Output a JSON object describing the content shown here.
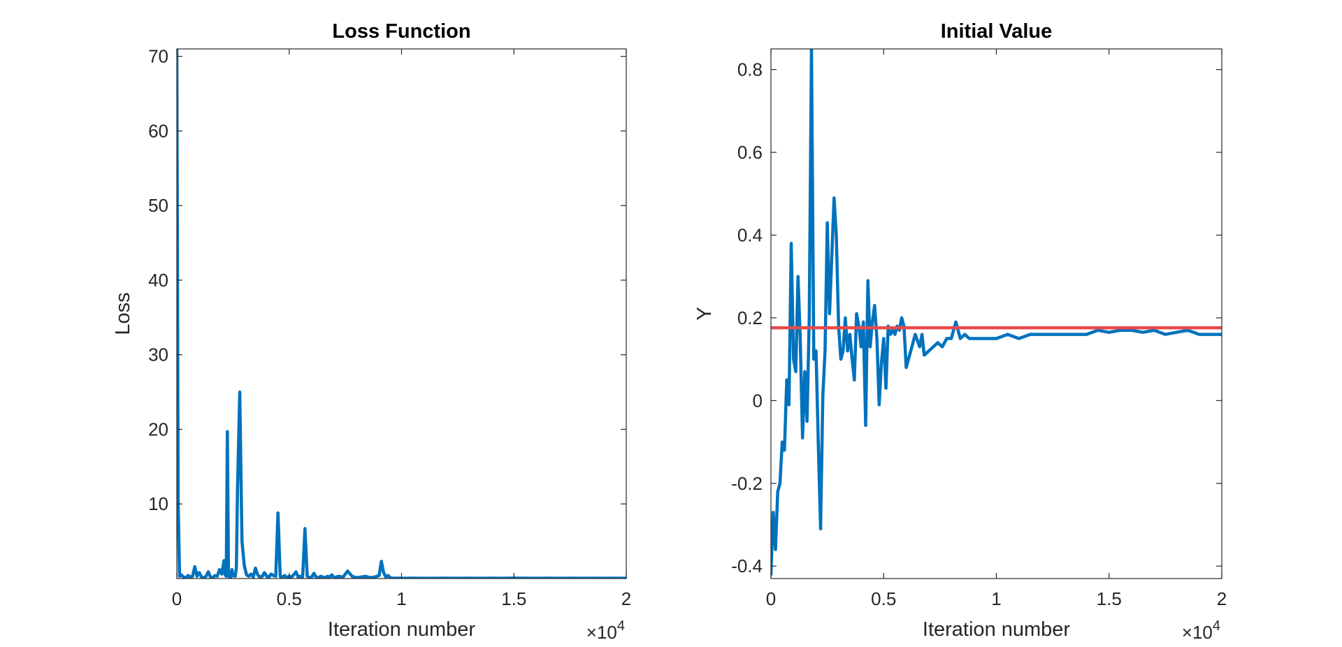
{
  "chart_data": [
    {
      "type": "line",
      "title": "Loss Function",
      "xlabel": "Iteration number",
      "ylabel": "Loss",
      "xlim": [
        0,
        20000
      ],
      "ylim": [
        0,
        71
      ],
      "x_exponent_label": "×10",
      "x_exponent": "4",
      "xticks": [
        0,
        5000,
        10000,
        15000,
        20000
      ],
      "xtick_labels": [
        "0",
        "0.5",
        "1",
        "1.5",
        "2"
      ],
      "yticks": [
        10,
        20,
        30,
        40,
        50,
        60,
        70
      ],
      "ytick_labels": [
        "10",
        "20",
        "30",
        "40",
        "50",
        "60",
        "70"
      ],
      "grid": false,
      "series": [
        {
          "color": "#0072bd",
          "x": [
            0,
            60,
            120,
            200,
            300,
            400,
            500,
            600,
            700,
            800,
            900,
            1000,
            1100,
            1200,
            1300,
            1400,
            1500,
            1600,
            1700,
            1800,
            1900,
            2000,
            2100,
            2150,
            2200,
            2250,
            2300,
            2350,
            2400,
            2450,
            2500,
            2600,
            2650,
            2700,
            2800,
            2900,
            3000,
            3100,
            3200,
            3300,
            3400,
            3500,
            3600,
            3700,
            3800,
            3900,
            4000,
            4100,
            4200,
            4300,
            4400,
            4500,
            4600,
            4700,
            4800,
            4900,
            5000,
            5100,
            5200,
            5300,
            5400,
            5500,
            5600,
            5700,
            5800,
            5900,
            6000,
            6100,
            6200,
            6300,
            6400,
            6500,
            6600,
            6700,
            6800,
            6900,
            7000,
            7200,
            7400,
            7600,
            7800,
            8000,
            8200,
            8400,
            8600,
            8800,
            9000,
            9100,
            9200,
            9300,
            9400,
            9500,
            9600,
            9700,
            9800,
            10000,
            10500,
            11000,
            11500,
            12000,
            12500,
            13000,
            13500,
            14000,
            14500,
            15000,
            15500,
            16000,
            16500,
            17000,
            17500,
            18000,
            18500,
            19000,
            19500,
            20000
          ],
          "y": [
            71,
            10,
            0.3,
            0.5,
            0.2,
            0.1,
            0.4,
            0.2,
            0.3,
            1.6,
            0.3,
            0.8,
            0.2,
            0.1,
            0.3,
            0.9,
            0.2,
            0.1,
            0.4,
            0.3,
            1.2,
            0.6,
            2.4,
            0.5,
            0.3,
            19.7,
            0.4,
            0.2,
            0.1,
            1.2,
            0.4,
            0.3,
            1.5,
            12,
            25,
            5,
            1.8,
            0.5,
            0.3,
            0.6,
            0.2,
            1.4,
            0.5,
            0.2,
            0.3,
            0.8,
            0.3,
            0.2,
            0.6,
            0.4,
            0.3,
            8.8,
            0.3,
            0.2,
            0.4,
            0.1,
            0.3,
            0.2,
            0.5,
            0.9,
            0.2,
            0.3,
            0.2,
            6.7,
            0.3,
            0.1,
            0.2,
            0.7,
            0.2,
            0.1,
            0.3,
            0.2,
            0.1,
            0.3,
            0.2,
            0.5,
            0.1,
            0.3,
            0.2,
            1.0,
            0.3,
            0.1,
            0.2,
            0.3,
            0.1,
            0.2,
            0.4,
            2.3,
            0.8,
            0.2,
            0.4,
            0.1,
            0.05,
            0.05,
            0.05,
            0.04,
            0.05,
            0.04,
            0.04,
            0.05,
            0.04,
            0.05,
            0.04,
            0.05,
            0.04,
            0.06,
            0.05,
            0.04,
            0.05,
            0.04,
            0.05,
            0.04,
            0.05,
            0.04,
            0.05,
            0.04
          ]
        }
      ]
    },
    {
      "type": "line",
      "title": "Initial Value",
      "xlabel": "Iteration number",
      "ylabel": "Y",
      "xlim": [
        0,
        20000
      ],
      "ylim": [
        -0.43,
        0.85
      ],
      "x_exponent_label": "×10",
      "x_exponent": "4",
      "xticks": [
        0,
        5000,
        10000,
        15000,
        20000
      ],
      "xtick_labels": [
        "0",
        "0.5",
        "1",
        "1.5",
        "2"
      ],
      "yticks": [
        -0.4,
        -0.2,
        0,
        0.2,
        0.4,
        0.6,
        0.8
      ],
      "ytick_labels": [
        "-0.4",
        "-0.2",
        "0",
        "0.2",
        "0.4",
        "0.6",
        "0.8"
      ],
      "grid": false,
      "series": [
        {
          "color": "#0072bd",
          "x": [
            0,
            100,
            200,
            300,
            400,
            500,
            600,
            700,
            800,
            900,
            1000,
            1100,
            1200,
            1300,
            1400,
            1500,
            1600,
            1700,
            1800,
            1900,
            2000,
            2100,
            2200,
            2300,
            2400,
            2500,
            2600,
            2700,
            2800,
            2900,
            3000,
            3100,
            3200,
            3300,
            3400,
            3500,
            3600,
            3700,
            3800,
            3900,
            4000,
            4100,
            4200,
            4300,
            4400,
            4500,
            4600,
            4700,
            4800,
            4900,
            5000,
            5100,
            5200,
            5300,
            5400,
            5500,
            5600,
            5700,
            5800,
            5900,
            6000,
            6200,
            6400,
            6600,
            6700,
            6800,
            7000,
            7200,
            7400,
            7600,
            7800,
            8000,
            8200,
            8400,
            8600,
            8800,
            9000,
            9300,
            9600,
            10000,
            10500,
            11000,
            11500,
            12000,
            12500,
            13000,
            13500,
            14000,
            14500,
            15000,
            15500,
            16000,
            16500,
            17000,
            17500,
            18000,
            18500,
            19000,
            19500,
            20000
          ],
          "y": [
            -0.42,
            -0.27,
            -0.36,
            -0.22,
            -0.2,
            -0.1,
            -0.12,
            0.05,
            -0.01,
            0.38,
            0.1,
            0.07,
            0.3,
            0.15,
            -0.09,
            0.07,
            -0.05,
            0.2,
            0.85,
            0.1,
            0.12,
            -0.1,
            -0.31,
            0.01,
            0.12,
            0.43,
            0.21,
            0.35,
            0.49,
            0.4,
            0.18,
            0.1,
            0.12,
            0.2,
            0.12,
            0.16,
            0.1,
            0.05,
            0.21,
            0.18,
            0.13,
            0.19,
            -0.06,
            0.29,
            0.13,
            0.19,
            0.23,
            0.15,
            -0.01,
            0.09,
            0.15,
            0.03,
            0.18,
            0.16,
            0.17,
            0.16,
            0.18,
            0.17,
            0.2,
            0.18,
            0.08,
            0.12,
            0.16,
            0.13,
            0.16,
            0.11,
            0.12,
            0.13,
            0.14,
            0.13,
            0.15,
            0.15,
            0.19,
            0.15,
            0.16,
            0.15,
            0.15,
            0.15,
            0.15,
            0.15,
            0.16,
            0.15,
            0.16,
            0.16,
            0.16,
            0.16,
            0.16,
            0.16,
            0.17,
            0.165,
            0.17,
            0.17,
            0.165,
            0.17,
            0.16,
            0.165,
            0.17,
            0.16,
            0.16,
            0.16
          ]
        },
        {
          "color": "#e84a4a",
          "x": [
            0,
            20000
          ],
          "y": [
            0.176,
            0.176
          ]
        }
      ]
    }
  ]
}
